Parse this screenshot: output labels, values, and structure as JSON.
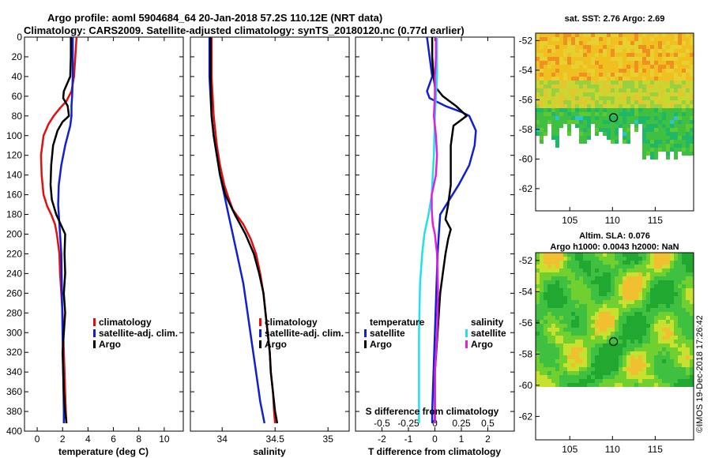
{
  "header": {
    "line1": "Argo profile: aoml 5904684_64 20-Jan-2018 57.2S 110.12E (NRT data)",
    "line2": "Climatology: CARS2009. Satellite-adjusted climatology: synTS_20180120.nc (0.77d earlier)"
  },
  "colors": {
    "climatology": "#e01010",
    "satellite": "#1020d0",
    "argo": "#000000",
    "sal_satellite": "#20e0e8",
    "sal_argo": "#e020e0"
  },
  "credit": "©IMOS 19-Dec-2018 17:26:42",
  "chart_data": [
    {
      "type": "line",
      "title": "",
      "xlabel": "temperature (deg C)",
      "ylabel": "",
      "xlim": [
        -1,
        11.5
      ],
      "ylim": [
        400,
        0
      ],
      "xticks": [
        "0",
        "2",
        "4",
        "6",
        "8",
        "10"
      ],
      "yticks": [
        "0",
        "20",
        "40",
        "60",
        "80",
        "100",
        "120",
        "140",
        "160",
        "180",
        "200",
        "220",
        "240",
        "260",
        "280",
        "300",
        "320",
        "340",
        "360",
        "380",
        "400"
      ],
      "legend": [
        "climatology",
        "satellite-adj. clim.",
        "Argo"
      ],
      "legend_position": "lower-right",
      "series": [
        {
          "name": "climatology",
          "color": "#e01010",
          "depth": [
            0,
            20,
            40,
            55,
            65,
            72,
            80,
            88,
            100,
            120,
            140,
            160,
            172,
            180,
            190,
            200,
            210,
            220,
            240,
            260,
            280,
            300,
            320,
            340,
            360,
            380,
            392
          ],
          "values": [
            3.1,
            3.0,
            2.9,
            2.7,
            2.3,
            1.8,
            1.3,
            0.9,
            0.5,
            0.3,
            0.35,
            0.5,
            0.8,
            1.1,
            1.4,
            1.55,
            1.65,
            1.75,
            1.8,
            1.9,
            2.0,
            2.05,
            2.1,
            2.15,
            2.2,
            2.25,
            2.3
          ]
        },
        {
          "name": "satellite-adj. clim.",
          "color": "#1020d0",
          "depth": [
            0,
            20,
            40,
            60,
            70,
            80,
            90,
            110,
            130,
            150,
            170,
            180,
            200,
            220,
            260,
            300,
            340,
            380,
            392
          ],
          "values": [
            2.8,
            2.8,
            2.8,
            2.75,
            2.7,
            2.7,
            2.6,
            2.2,
            1.9,
            1.7,
            1.65,
            1.7,
            1.8,
            1.9,
            1.95,
            2.0,
            2.05,
            2.1,
            2.1
          ]
        },
        {
          "name": "Argo",
          "color": "#000000",
          "depth": [
            0,
            20,
            40,
            55,
            62,
            70,
            80,
            86,
            95,
            110,
            130,
            150,
            165,
            180,
            200,
            220,
            240,
            260,
            280,
            300,
            320,
            340,
            360,
            380,
            392
          ],
          "values": [
            2.65,
            2.65,
            2.6,
            2.1,
            2.05,
            2.4,
            2.5,
            2.0,
            1.6,
            1.25,
            1.1,
            1.05,
            1.15,
            1.5,
            2.2,
            2.15,
            2.2,
            2.1,
            2.2,
            2.1,
            2.0,
            2.05,
            2.1,
            2.2,
            2.3
          ]
        }
      ]
    },
    {
      "type": "line",
      "title": "",
      "xlabel": "salinity",
      "ylabel": "",
      "xlim": [
        33.7,
        35.2
      ],
      "ylim": [
        400,
        0
      ],
      "xticks": [
        "34",
        "34.5",
        "35"
      ],
      "yticks": [],
      "legend": [
        "climatology",
        "satellite-adj. clim.",
        "Argo"
      ],
      "legend_position": "lower-right",
      "series": [
        {
          "name": "climatology",
          "color": "#e01010",
          "depth": [
            0,
            40,
            80,
            110,
            130,
            150,
            160,
            175,
            190,
            205,
            220,
            240,
            260,
            280,
            300,
            320,
            340,
            360,
            380,
            392
          ],
          "values": [
            33.9,
            33.9,
            33.92,
            33.95,
            33.98,
            34.02,
            34.05,
            34.1,
            34.2,
            34.27,
            34.32,
            34.36,
            34.39,
            34.41,
            34.43,
            34.45,
            34.46,
            34.48,
            34.49,
            34.5
          ]
        },
        {
          "name": "satellite-adj. clim.",
          "color": "#1020d0",
          "depth": [
            0,
            40,
            80,
            100,
            120,
            140,
            160,
            180,
            200,
            220,
            250,
            280,
            310,
            340,
            370,
            392
          ],
          "values": [
            33.88,
            33.88,
            33.9,
            33.92,
            33.95,
            33.98,
            34.02,
            34.06,
            34.1,
            34.14,
            34.2,
            34.24,
            34.28,
            34.32,
            34.36,
            34.4
          ]
        },
        {
          "name": "Argo",
          "color": "#000000",
          "depth": [
            0,
            40,
            80,
            100,
            120,
            140,
            160,
            180,
            200,
            220,
            240,
            260,
            280,
            300,
            320,
            340,
            360,
            380,
            392
          ],
          "values": [
            33.89,
            33.89,
            33.9,
            33.92,
            33.95,
            33.98,
            34.03,
            34.12,
            34.22,
            34.3,
            34.35,
            34.39,
            34.41,
            34.43,
            34.45,
            34.46,
            34.48,
            34.5,
            34.52
          ]
        }
      ]
    },
    {
      "type": "line",
      "title": "",
      "xlabel": "T difference from climatology",
      "ylabel": "",
      "xlim": [
        -3,
        3
      ],
      "ylim": [
        400,
        0
      ],
      "xticks": [
        "-2",
        "-1",
        "0",
        "1",
        "2"
      ],
      "xlabel_top": "S difference from climatology",
      "xticks_s": [
        "-0.5",
        "-0.25",
        "0",
        "0.25",
        "0.5"
      ],
      "yticks": [],
      "legend_temperature_title": "temperature",
      "legend_salinity_title": "salinity",
      "legend": [
        "satellite",
        "Argo",
        "satellite",
        "Argo"
      ],
      "legend_position": "lower",
      "series": [
        {
          "name": "temperature satellite",
          "color": "#1020d0",
          "depth": [
            0,
            20,
            40,
            55,
            62,
            70,
            76,
            80,
            86,
            95,
            110,
            130,
            150,
            165,
            180,
            200,
            220,
            260,
            300,
            340,
            380,
            392
          ],
          "values": [
            -0.3,
            -0.2,
            -0.1,
            -0.3,
            -0.2,
            0.4,
            1.0,
            1.3,
            1.4,
            1.55,
            1.5,
            1.3,
            0.9,
            0.55,
            0.2,
            0.15,
            0.1,
            0.05,
            0.0,
            -0.05,
            -0.1,
            -0.1
          ]
        },
        {
          "name": "temperature Argo",
          "color": "#000000",
          "depth": [
            0,
            20,
            40,
            50,
            60,
            70,
            80,
            90,
            110,
            130,
            150,
            170,
            185,
            195,
            205,
            220,
            240,
            260,
            300,
            340,
            380,
            392
          ],
          "values": [
            -0.1,
            -0.1,
            -0.05,
            0.0,
            0.3,
            0.8,
            1.2,
            0.7,
            0.6,
            0.6,
            0.6,
            0.5,
            0.4,
            0.6,
            0.5,
            0.4,
            0.3,
            0.2,
            0.1,
            0.0,
            0.0,
            0.0
          ]
        },
        {
          "name": "salinity satellite",
          "color": "#20e0e8",
          "depth": [
            0,
            40,
            80,
            120,
            160,
            180,
            200,
            220,
            250,
            300,
            350,
            392
          ],
          "values": [
            0.02,
            0.02,
            0.0,
            -0.01,
            -0.03,
            -0.06,
            -0.1,
            -0.12,
            -0.14,
            -0.15,
            -0.15,
            -0.15
          ]
        },
        {
          "name": "salinity Argo",
          "color": "#e020e0",
          "depth": [
            0,
            20,
            40,
            60,
            80,
            100,
            120,
            140,
            160,
            175,
            190,
            200,
            220,
            260,
            300,
            340,
            380,
            392
          ],
          "values": [
            0.01,
            0.01,
            0.0,
            0.0,
            -0.01,
            0.01,
            0.02,
            0.01,
            -0.03,
            -0.03,
            -0.02,
            0.0,
            0.02,
            0.03,
            0.02,
            0.0,
            0.0,
            0.0
          ]
        }
      ]
    },
    {
      "type": "heatmap",
      "title": "sat. SST: 2.76 Argo: 2.69",
      "xlim": [
        101,
        119.5
      ],
      "ylim": [
        -63.5,
        -51.5
      ],
      "xticks": [
        "105",
        "110",
        "115"
      ],
      "yticks": [
        "-52",
        "-54",
        "-56",
        "-58",
        "-60",
        "-62"
      ],
      "marker": {
        "lon": 110.12,
        "lat": -57.2
      }
    },
    {
      "type": "heatmap",
      "title": "Altim. SLA: 0.076",
      "subtitle": "Argo h1000: 0.0043 h2000: NaN",
      "xlim": [
        101,
        119.5
      ],
      "ylim": [
        -63.5,
        -51.5
      ],
      "xticks": [
        "105",
        "110",
        "115"
      ],
      "yticks": [
        "-52",
        "-54",
        "-56",
        "-58",
        "-60",
        "-62"
      ],
      "marker": {
        "lon": 110.12,
        "lat": -57.2
      }
    }
  ]
}
